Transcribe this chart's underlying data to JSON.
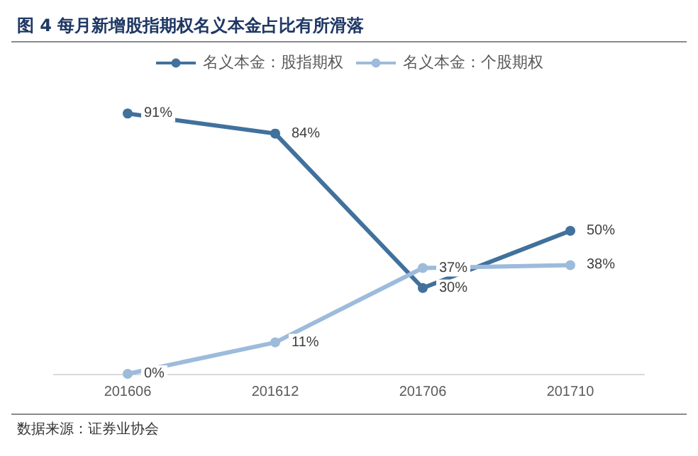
{
  "chart_data": {
    "type": "line",
    "title": "图 4  每月新增股指期权名义本金占比有所滑落",
    "annotations": [
      "数据来源：证券业协会"
    ],
    "categories": [
      "201606",
      "201612",
      "201706",
      "201710"
    ],
    "series": [
      {
        "name": "名义本金：股指期权",
        "color": "#41719c",
        "values": [
          91,
          84,
          30,
          50
        ],
        "value_labels": [
          "91%",
          "84%",
          "30%",
          "50%"
        ]
      },
      {
        "name": "名义本金：个股期权",
        "color": "#9dbbdb",
        "values": [
          0,
          11,
          37,
          38
        ],
        "value_labels": [
          "0%",
          "11%",
          "37%",
          "38%"
        ]
      }
    ],
    "legend": "top",
    "marker": "circle"
  }
}
